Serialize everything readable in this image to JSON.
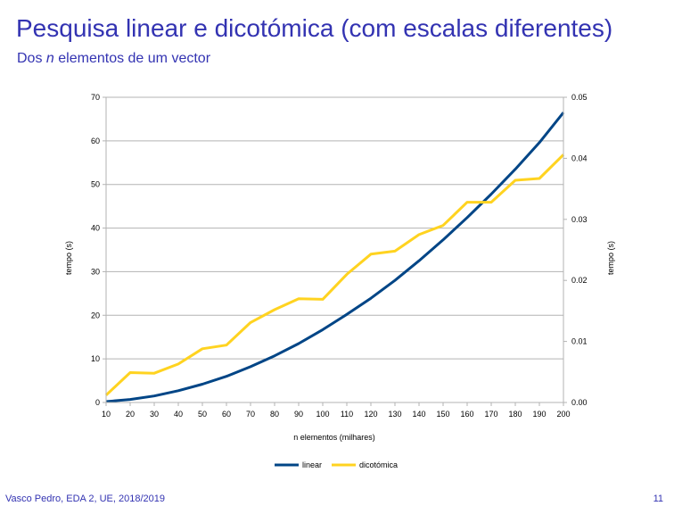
{
  "slide": {
    "title": "Pesquisa linear e dicotómica (com escalas diferentes)",
    "subtitle_prefix": "Dos",
    "subtitle_var": "n",
    "subtitle_suffix": "elementos de um vector",
    "footer": "Vasco Pedro, EDA 2, UE, 2018/2019",
    "page_number": "11"
  },
  "chart_data": {
    "type": "line",
    "title": "",
    "xlabel": "n elementos (milhares)",
    "ylabel": "tempo (s)",
    "ylabel_right": "tempo (s)",
    "x": [
      10,
      20,
      30,
      40,
      50,
      60,
      70,
      80,
      90,
      100,
      110,
      120,
      130,
      140,
      150,
      160,
      170,
      180,
      190,
      200
    ],
    "xlim": [
      10,
      200
    ],
    "ylim_left": [
      0,
      70
    ],
    "ylim_right": [
      0,
      0.05
    ],
    "y_ticks_left": [
      "0",
      "10",
      "20",
      "30",
      "40",
      "50",
      "60",
      "70"
    ],
    "y_ticks_right": [
      "0.00",
      "0.01",
      "0.02",
      "0.03",
      "0.04",
      "0.05"
    ],
    "grid": true,
    "legend_position": "bottom",
    "series": [
      {
        "name": "linear",
        "axis": "left",
        "color": "#004586",
        "values": [
          0.2,
          0.7,
          1.5,
          2.7,
          4.2,
          6.0,
          8.2,
          10.7,
          13.5,
          16.7,
          20.2,
          23.9,
          28.0,
          32.5,
          37.3,
          42.4,
          47.8,
          53.5,
          59.6,
          66.5
        ]
      },
      {
        "name": "dicotómica",
        "axis": "right",
        "color": "#ffd320",
        "values": [
          0.0012,
          0.0049,
          0.0048,
          0.0063,
          0.0088,
          0.0094,
          0.0131,
          0.0152,
          0.017,
          0.0169,
          0.021,
          0.0243,
          0.0248,
          0.0275,
          0.029,
          0.0328,
          0.0328,
          0.0364,
          0.0367,
          0.0406
        ]
      }
    ]
  }
}
